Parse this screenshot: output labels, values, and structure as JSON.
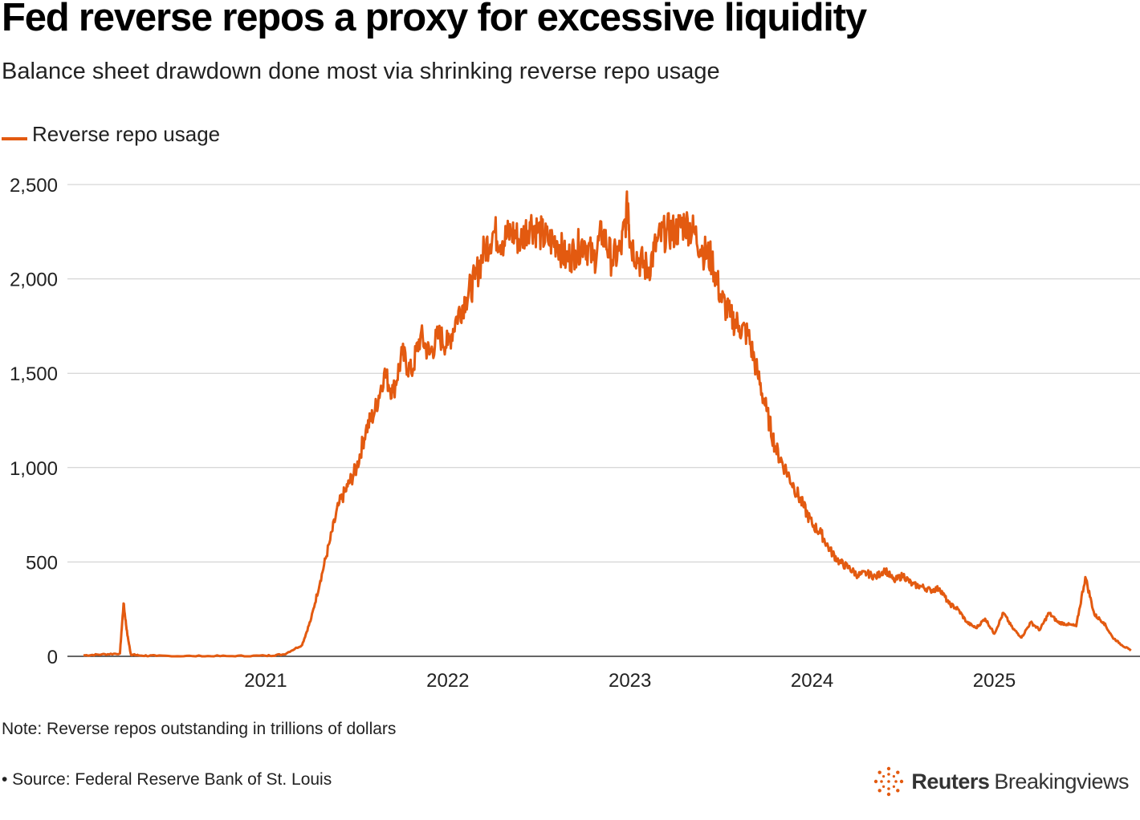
{
  "title": "Fed reverse repos a proxy for excessive liquidity",
  "subtitle": "Balance sheet drawdown done most via shrinking reverse repo usage",
  "note": "Note: Reverse repos outstanding in trillions of dollars",
  "source": "• Source: Federal Reserve Bank of St. Louis",
  "brand": {
    "name_bold": "Reuters",
    "name_regular": "Breakingviews",
    "logo_icon": "reuters-dot-logo-icon"
  },
  "colors": {
    "line": "#e35a10",
    "grid": "#cccccc",
    "axis": "#333333",
    "text": "#222222"
  },
  "chart_data": {
    "type": "line",
    "title": "Fed reverse repos a proxy for excessive liquidity",
    "subtitle": "Balance sheet drawdown done most via shrinking reverse repo usage",
    "xlabel": "",
    "ylabel": "",
    "ylim": [
      0,
      2600
    ],
    "xlim": [
      2020.0,
      2025.8
    ],
    "y_ticks": [
      0,
      500,
      1000,
      1500,
      2000,
      2500
    ],
    "y_tick_labels": [
      "0",
      "500",
      "1,000",
      "1,500",
      "2,000",
      "2,500"
    ],
    "x_ticks": [
      2021,
      2022,
      2023,
      2024,
      2025
    ],
    "x_tick_labels": [
      "2021",
      "2022",
      "2023",
      "2024",
      "2025"
    ],
    "grid": true,
    "legend_position": "top-left",
    "series": [
      {
        "name": "Reverse repo usage",
        "color": "#e35a10",
        "x": [
          2020.0,
          2020.1,
          2020.2,
          2020.22,
          2020.24,
          2020.26,
          2020.3,
          2020.4,
          2020.6,
          2020.8,
          2021.0,
          2021.1,
          2021.2,
          2021.25,
          2021.3,
          2021.35,
          2021.4,
          2021.45,
          2021.5,
          2021.55,
          2021.6,
          2021.65,
          2021.7,
          2021.75,
          2021.8,
          2021.85,
          2021.9,
          2021.95,
          2022.0,
          2022.05,
          2022.1,
          2022.15,
          2022.2,
          2022.25,
          2022.3,
          2022.35,
          2022.4,
          2022.45,
          2022.5,
          2022.55,
          2022.6,
          2022.65,
          2022.7,
          2022.75,
          2022.8,
          2022.85,
          2022.9,
          2022.95,
          2022.99,
          2023.0,
          2023.05,
          2023.1,
          2023.15,
          2023.2,
          2023.25,
          2023.3,
          2023.35,
          2023.4,
          2023.45,
          2023.5,
          2023.55,
          2023.6,
          2023.65,
          2023.7,
          2023.75,
          2023.8,
          2023.85,
          2023.9,
          2023.95,
          2024.0,
          2024.05,
          2024.1,
          2024.15,
          2024.2,
          2024.25,
          2024.3,
          2024.35,
          2024.4,
          2024.45,
          2024.5,
          2024.55,
          2024.6,
          2024.65,
          2024.7,
          2024.75,
          2024.8,
          2024.85,
          2024.9,
          2024.95,
          2025.0,
          2025.05,
          2025.1,
          2025.15,
          2025.2,
          2025.25,
          2025.3,
          2025.35,
          2025.4,
          2025.45,
          2025.5,
          2025.55,
          2025.6,
          2025.65,
          2025.7,
          2025.75
        ],
        "values": [
          5,
          10,
          15,
          280,
          120,
          10,
          5,
          2,
          1,
          1,
          3,
          10,
          60,
          200,
          400,
          600,
          800,
          900,
          1000,
          1200,
          1300,
          1500,
          1400,
          1600,
          1500,
          1700,
          1600,
          1700,
          1650,
          1800,
          1900,
          2000,
          2150,
          2250,
          2200,
          2250,
          2200,
          2300,
          2250,
          2200,
          2200,
          2100,
          2150,
          2200,
          2100,
          2250,
          2100,
          2150,
          2400,
          2200,
          2100,
          2050,
          2200,
          2250,
          2250,
          2300,
          2250,
          2150,
          2100,
          1900,
          1800,
          1750,
          1700,
          1500,
          1300,
          1100,
          1000,
          900,
          800,
          700,
          650,
          560,
          500,
          470,
          430,
          440,
          420,
          460,
          400,
          430,
          380,
          370,
          350,
          360,
          280,
          250,
          180,
          150,
          200,
          120,
          230,
          150,
          100,
          180,
          140,
          230,
          180,
          170,
          160,
          420,
          220,
          180,
          100,
          60,
          30
        ]
      }
    ]
  }
}
